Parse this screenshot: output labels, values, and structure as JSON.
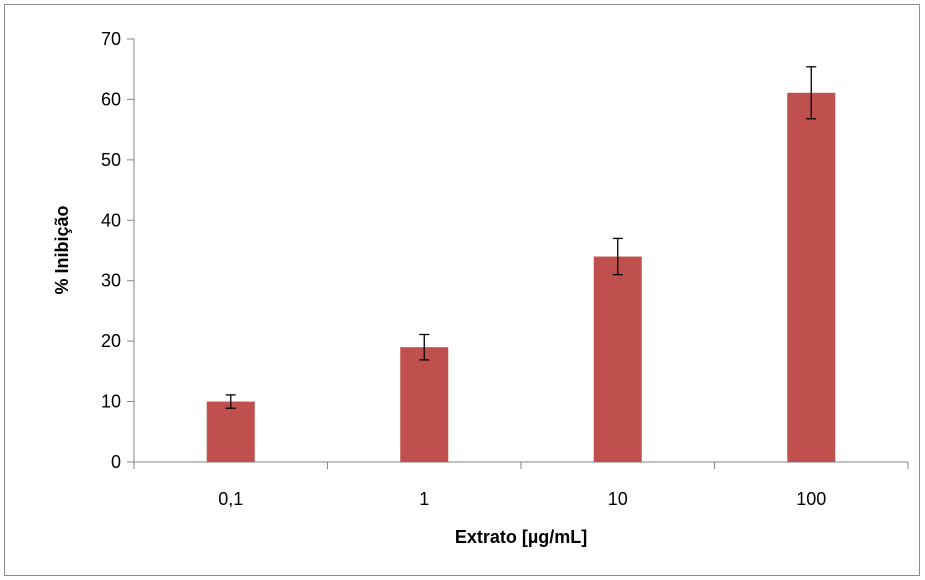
{
  "chart_data": {
    "type": "bar",
    "title": "",
    "xlabel": "Extrato [µg/mL]",
    "ylabel": "% Inibição",
    "categories": [
      "0,1",
      "1",
      "10",
      "100"
    ],
    "series": [
      {
        "values": [
          10,
          19,
          34,
          61.1
        ],
        "error": [
          1.1,
          2.1,
          3.0,
          4.3
        ],
        "color": "#c0504d"
      }
    ],
    "ylim": [
      0,
      70
    ],
    "yticks": [
      0,
      10,
      20,
      30,
      40,
      50,
      60,
      70
    ],
    "grid": false,
    "legend": "none"
  }
}
